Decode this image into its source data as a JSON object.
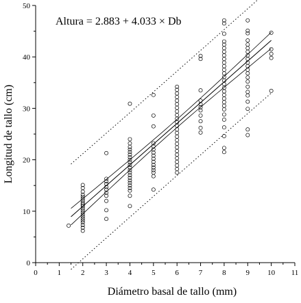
{
  "chart_data": {
    "type": "scatter",
    "title": "",
    "annotation": "Altura = 2.883 + 4.033 × Db",
    "xlabel": "Diámetro basal de tallo (mm)",
    "ylabel": "Longitud de tallo (cm)",
    "xlim": [
      0,
      11
    ],
    "ylim": [
      0,
      50
    ],
    "xticks": [
      "0",
      "1",
      "2",
      "3",
      "4",
      "5",
      "6",
      "7",
      "8",
      "9",
      "10",
      "11"
    ],
    "yticks": [
      "0",
      "10",
      "20",
      "30",
      "40",
      "50"
    ],
    "grid": false,
    "regression": {
      "intercept": 2.883,
      "slope": 4.033,
      "x_range": [
        1.5,
        10.0
      ],
      "confidence_band": true,
      "prediction_band": true
    },
    "points": [
      {
        "x": 1.4,
        "y": 7.2
      },
      {
        "x": 2,
        "y": 6.2
      },
      {
        "x": 2,
        "y": 6.8
      },
      {
        "x": 2,
        "y": 7.3
      },
      {
        "x": 2,
        "y": 7.8
      },
      {
        "x": 2,
        "y": 8.2
      },
      {
        "x": 2,
        "y": 8.6
      },
      {
        "x": 2,
        "y": 9.0
      },
      {
        "x": 2,
        "y": 9.4
      },
      {
        "x": 2,
        "y": 9.8
      },
      {
        "x": 2,
        "y": 10.2
      },
      {
        "x": 2,
        "y": 10.6
      },
      {
        "x": 2,
        "y": 11.0
      },
      {
        "x": 2,
        "y": 11.3
      },
      {
        "x": 2,
        "y": 11.6
      },
      {
        "x": 2,
        "y": 12.0
      },
      {
        "x": 2,
        "y": 12.4
      },
      {
        "x": 2,
        "y": 12.8
      },
      {
        "x": 2,
        "y": 13.2
      },
      {
        "x": 2,
        "y": 13.8
      },
      {
        "x": 2,
        "y": 14.5
      },
      {
        "x": 2,
        "y": 15.1
      },
      {
        "x": 3,
        "y": 8.5
      },
      {
        "x": 3,
        "y": 10.2
      },
      {
        "x": 3,
        "y": 12.0
      },
      {
        "x": 3,
        "y": 13.0
      },
      {
        "x": 3,
        "y": 13.6
      },
      {
        "x": 3,
        "y": 14.2
      },
      {
        "x": 3,
        "y": 14.7
      },
      {
        "x": 3,
        "y": 15.3
      },
      {
        "x": 3,
        "y": 15.8
      },
      {
        "x": 3,
        "y": 16.3
      },
      {
        "x": 3,
        "y": 21.3
      },
      {
        "x": 4,
        "y": 11.0
      },
      {
        "x": 4,
        "y": 13.0
      },
      {
        "x": 4,
        "y": 14.0
      },
      {
        "x": 4,
        "y": 14.5
      },
      {
        "x": 4,
        "y": 15.0
      },
      {
        "x": 4,
        "y": 15.5
      },
      {
        "x": 4,
        "y": 16.0
      },
      {
        "x": 4,
        "y": 16.5
      },
      {
        "x": 4,
        "y": 17.0
      },
      {
        "x": 4,
        "y": 17.5
      },
      {
        "x": 4,
        "y": 18.0
      },
      {
        "x": 4,
        "y": 18.5
      },
      {
        "x": 4,
        "y": 19.0
      },
      {
        "x": 4,
        "y": 19.5
      },
      {
        "x": 4,
        "y": 20.0
      },
      {
        "x": 4,
        "y": 20.5
      },
      {
        "x": 4,
        "y": 21.0
      },
      {
        "x": 4,
        "y": 21.5
      },
      {
        "x": 4,
        "y": 22.0
      },
      {
        "x": 4,
        "y": 22.5
      },
      {
        "x": 4,
        "y": 23.2
      },
      {
        "x": 4,
        "y": 24.0
      },
      {
        "x": 4,
        "y": 30.9
      },
      {
        "x": 5,
        "y": 14.2
      },
      {
        "x": 5,
        "y": 16.8
      },
      {
        "x": 5,
        "y": 17.5
      },
      {
        "x": 5,
        "y": 18.0
      },
      {
        "x": 5,
        "y": 18.5
      },
      {
        "x": 5,
        "y": 19.0
      },
      {
        "x": 5,
        "y": 19.6
      },
      {
        "x": 5,
        "y": 20.2
      },
      {
        "x": 5,
        "y": 20.8
      },
      {
        "x": 5,
        "y": 21.4
      },
      {
        "x": 5,
        "y": 22.0
      },
      {
        "x": 5,
        "y": 22.6
      },
      {
        "x": 5,
        "y": 23.2
      },
      {
        "x": 5,
        "y": 26.5
      },
      {
        "x": 5,
        "y": 28.6
      },
      {
        "x": 5,
        "y": 32.6
      },
      {
        "x": 6,
        "y": 17.5
      },
      {
        "x": 6,
        "y": 18.2
      },
      {
        "x": 6,
        "y": 18.9
      },
      {
        "x": 6,
        "y": 19.6
      },
      {
        "x": 6,
        "y": 20.3
      },
      {
        "x": 6,
        "y": 21.0
      },
      {
        "x": 6,
        "y": 21.7
      },
      {
        "x": 6,
        "y": 22.4
      },
      {
        "x": 6,
        "y": 23.1
      },
      {
        "x": 6,
        "y": 23.8
      },
      {
        "x": 6,
        "y": 24.5
      },
      {
        "x": 6,
        "y": 25.2
      },
      {
        "x": 6,
        "y": 25.9
      },
      {
        "x": 6,
        "y": 26.6
      },
      {
        "x": 6,
        "y": 27.3
      },
      {
        "x": 6,
        "y": 28.0
      },
      {
        "x": 6,
        "y": 28.7
      },
      {
        "x": 6,
        "y": 29.4
      },
      {
        "x": 6,
        "y": 30.1
      },
      {
        "x": 6,
        "y": 30.8
      },
      {
        "x": 6,
        "y": 31.5
      },
      {
        "x": 6,
        "y": 32.2
      },
      {
        "x": 6,
        "y": 32.9
      },
      {
        "x": 6,
        "y": 33.6
      },
      {
        "x": 6,
        "y": 34.2
      },
      {
        "x": 7,
        "y": 25.3
      },
      {
        "x": 7,
        "y": 26.2
      },
      {
        "x": 7,
        "y": 27.5
      },
      {
        "x": 7,
        "y": 28.6
      },
      {
        "x": 7,
        "y": 29.6
      },
      {
        "x": 7,
        "y": 30.2
      },
      {
        "x": 7,
        "y": 30.8
      },
      {
        "x": 7,
        "y": 31.5
      },
      {
        "x": 7,
        "y": 33.5
      },
      {
        "x": 7,
        "y": 39.6
      },
      {
        "x": 7,
        "y": 40.2
      },
      {
        "x": 8,
        "y": 21.5
      },
      {
        "x": 8,
        "y": 22.3
      },
      {
        "x": 8,
        "y": 24.6
      },
      {
        "x": 8,
        "y": 26.3
      },
      {
        "x": 8,
        "y": 27.8
      },
      {
        "x": 8,
        "y": 28.8
      },
      {
        "x": 8,
        "y": 29.8
      },
      {
        "x": 8,
        "y": 30.5
      },
      {
        "x": 8,
        "y": 31.2
      },
      {
        "x": 8,
        "y": 31.9
      },
      {
        "x": 8,
        "y": 32.6
      },
      {
        "x": 8,
        "y": 33.3
      },
      {
        "x": 8,
        "y": 34.0
      },
      {
        "x": 8,
        "y": 34.7
      },
      {
        "x": 8,
        "y": 35.4
      },
      {
        "x": 8,
        "y": 36.1
      },
      {
        "x": 8,
        "y": 36.8
      },
      {
        "x": 8,
        "y": 37.5
      },
      {
        "x": 8,
        "y": 38.2
      },
      {
        "x": 8,
        "y": 38.9
      },
      {
        "x": 8,
        "y": 39.6
      },
      {
        "x": 8,
        "y": 40.3
      },
      {
        "x": 8,
        "y": 41.0
      },
      {
        "x": 8,
        "y": 41.7
      },
      {
        "x": 8,
        "y": 42.4
      },
      {
        "x": 8,
        "y": 43.0
      },
      {
        "x": 8,
        "y": 44.5
      },
      {
        "x": 8,
        "y": 46.5
      },
      {
        "x": 8,
        "y": 47.1
      },
      {
        "x": 9,
        "y": 24.8
      },
      {
        "x": 9,
        "y": 25.9
      },
      {
        "x": 9,
        "y": 29.9
      },
      {
        "x": 9,
        "y": 31.3
      },
      {
        "x": 9,
        "y": 32.5
      },
      {
        "x": 9,
        "y": 33.2
      },
      {
        "x": 9,
        "y": 34.2
      },
      {
        "x": 9,
        "y": 35.2
      },
      {
        "x": 9,
        "y": 36.0
      },
      {
        "x": 9,
        "y": 36.8
      },
      {
        "x": 9,
        "y": 37.5
      },
      {
        "x": 9,
        "y": 38.2
      },
      {
        "x": 9,
        "y": 38.9
      },
      {
        "x": 9,
        "y": 39.6
      },
      {
        "x": 9,
        "y": 40.3
      },
      {
        "x": 9,
        "y": 41.0
      },
      {
        "x": 9,
        "y": 41.7
      },
      {
        "x": 9,
        "y": 42.4
      },
      {
        "x": 9,
        "y": 43.2
      },
      {
        "x": 9,
        "y": 44.6
      },
      {
        "x": 9,
        "y": 45.1
      },
      {
        "x": 9,
        "y": 47.1
      },
      {
        "x": 10,
        "y": 33.4
      },
      {
        "x": 10,
        "y": 39.8
      },
      {
        "x": 10,
        "y": 40.6
      },
      {
        "x": 10,
        "y": 41.5
      },
      {
        "x": 10,
        "y": 44.7
      }
    ]
  }
}
